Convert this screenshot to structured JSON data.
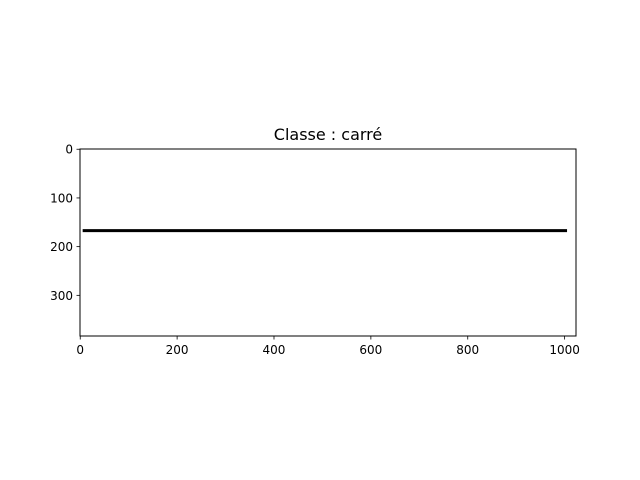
{
  "chart_data": {
    "type": "line",
    "title": "Classe : carré",
    "xlabel": "",
    "ylabel": "",
    "xlim": [
      -0.5,
      1023.5
    ],
    "ylim": [
      383.5,
      -0.5
    ],
    "y_inverted": true,
    "grid": false,
    "xticks": [
      0,
      200,
      400,
      600,
      800,
      1000
    ],
    "yticks": [
      0,
      100,
      200,
      300
    ],
    "series": [
      {
        "x": [
          5,
          1005
        ],
        "y": [
          167,
          167
        ],
        "color": "#000000"
      }
    ]
  }
}
